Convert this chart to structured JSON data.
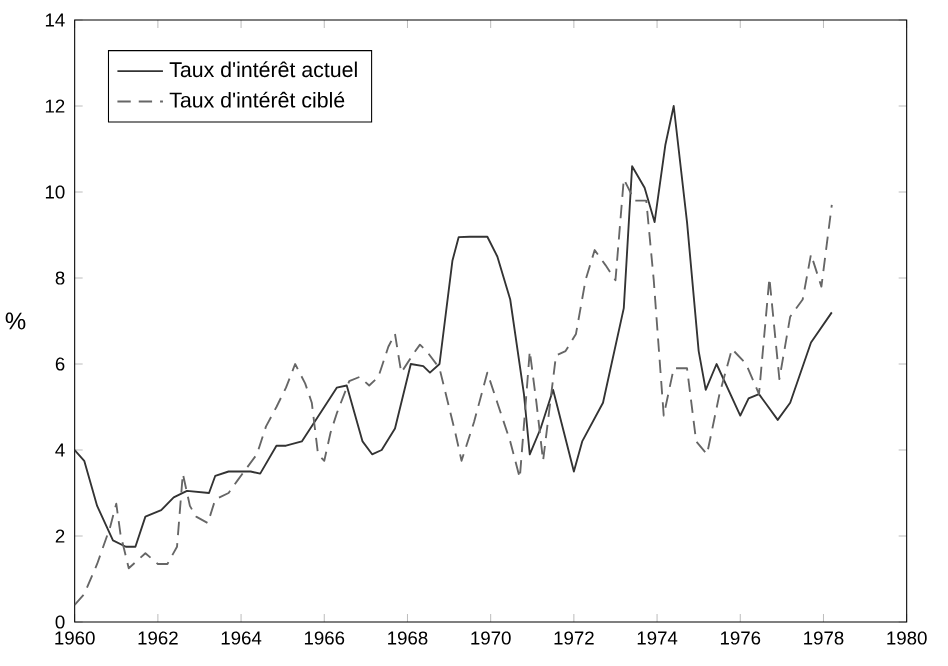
{
  "chart_data": {
    "type": "line",
    "ylabel": "%",
    "xlim": [
      1960,
      1980
    ],
    "ylim": [
      0,
      14
    ],
    "xticks": [
      1960,
      1962,
      1964,
      1966,
      1968,
      1970,
      1972,
      1974,
      1976,
      1978,
      1980
    ],
    "yticks": [
      0,
      2,
      4,
      6,
      8,
      10,
      12,
      14
    ],
    "grid": false,
    "legend": "top left",
    "marker": "none",
    "series": [
      {
        "name": "Taux d'intérêt actuel",
        "color": "#333333",
        "line_style": "solid",
        "x": [
          1960,
          1960.23,
          1960.54,
          1960.92,
          1961.23,
          1961.46,
          1961.7,
          1962.08,
          1962.38,
          1962.7,
          1963.23,
          1963.38,
          1963.7,
          1964.23,
          1964.46,
          1964.85,
          1965.08,
          1965.46,
          1966.0,
          1966.3,
          1966.54,
          1966.92,
          1967.15,
          1967.38,
          1967.7,
          1968.08,
          1968.38,
          1968.54,
          1968.77,
          1969.08,
          1969.23,
          1969.5,
          1969.92,
          1970.16,
          1970.47,
          1970.8,
          1970.94,
          1971.2,
          1971.5,
          1972.0,
          1972.2,
          1972.7,
          1973.2,
          1973.4,
          1973.7,
          1973.94,
          1974.2,
          1974.4,
          1974.72,
          1975.0,
          1975.17,
          1975.43,
          1976.0,
          1976.2,
          1976.45,
          1976.9,
          1977.2,
          1977.7,
          1978.2
        ],
        "values": [
          4.0,
          3.75,
          2.7,
          1.9,
          1.75,
          1.75,
          2.45,
          2.6,
          2.9,
          3.05,
          3.0,
          3.4,
          3.5,
          3.5,
          3.45,
          4.1,
          4.1,
          4.2,
          5.0,
          5.45,
          5.5,
          4.2,
          3.9,
          4.0,
          4.5,
          6.0,
          5.95,
          5.8,
          6.0,
          8.4,
          8.95,
          8.96,
          8.96,
          8.5,
          7.5,
          5.3,
          3.9,
          4.5,
          5.4,
          3.5,
          4.2,
          5.1,
          7.3,
          10.6,
          10.1,
          9.3,
          11.1,
          12.0,
          9.3,
          6.3,
          5.4,
          6.0,
          4.8,
          5.2,
          5.3,
          4.7,
          5.1,
          6.5,
          7.2
        ]
      },
      {
        "name": "Taux d'intérêt ciblé",
        "color": "#666666",
        "line_style": "dashed",
        "x": [
          1960,
          1960.23,
          1960.54,
          1960.85,
          1961,
          1961.1,
          1961.3,
          1961.7,
          1962.0,
          1962.23,
          1962.46,
          1962.6,
          1962.77,
          1962.92,
          1963.2,
          1963.38,
          1963.7,
          1963.92,
          1964.15,
          1964.38,
          1964.6,
          1964.85,
          1965.08,
          1965.3,
          1965.54,
          1965.7,
          1965.85,
          1966.0,
          1966.15,
          1966.3,
          1966.6,
          1966.85,
          1967.08,
          1967.3,
          1967.54,
          1967.7,
          1967.85,
          1968.15,
          1968.3,
          1968.46,
          1968.77,
          1969.15,
          1969.3,
          1969.6,
          1969.92,
          1970.16,
          1970.47,
          1970.7,
          1970.94,
          1971.1,
          1971.26,
          1971.57,
          1971.8,
          1972.05,
          1972.28,
          1972.5,
          1972.76,
          1973.0,
          1973.2,
          1973.46,
          1973.74,
          1973.92,
          1974.16,
          1974.4,
          1974.72,
          1974.94,
          1975.2,
          1975.5,
          1975.8,
          1976.14,
          1976.45,
          1976.7,
          1976.94,
          1977.2,
          1977.5,
          1977.7,
          1977.95,
          1978.2
        ],
        "values": [
          0.4,
          0.65,
          1.35,
          2.2,
          2.75,
          2.05,
          1.25,
          1.6,
          1.35,
          1.35,
          1.75,
          3.45,
          2.7,
          2.45,
          2.3,
          2.85,
          3.0,
          3.3,
          3.6,
          3.9,
          4.55,
          5.0,
          5.45,
          6.0,
          5.55,
          5.1,
          3.9,
          3.75,
          4.4,
          4.85,
          5.6,
          5.7,
          5.5,
          5.7,
          6.4,
          6.7,
          5.8,
          6.25,
          6.45,
          6.3,
          5.9,
          4.4,
          3.75,
          4.65,
          5.8,
          5.1,
          4.2,
          3.35,
          6.3,
          5.1,
          3.75,
          6.2,
          6.3,
          6.7,
          7.95,
          8.65,
          8.3,
          7.95,
          10.3,
          9.8,
          9.8,
          7.95,
          4.8,
          5.9,
          5.9,
          4.2,
          3.9,
          5.3,
          6.35,
          6.0,
          5.3,
          8.0,
          5.65,
          7.1,
          7.5,
          8.55,
          7.8,
          9.7
        ]
      }
    ]
  }
}
